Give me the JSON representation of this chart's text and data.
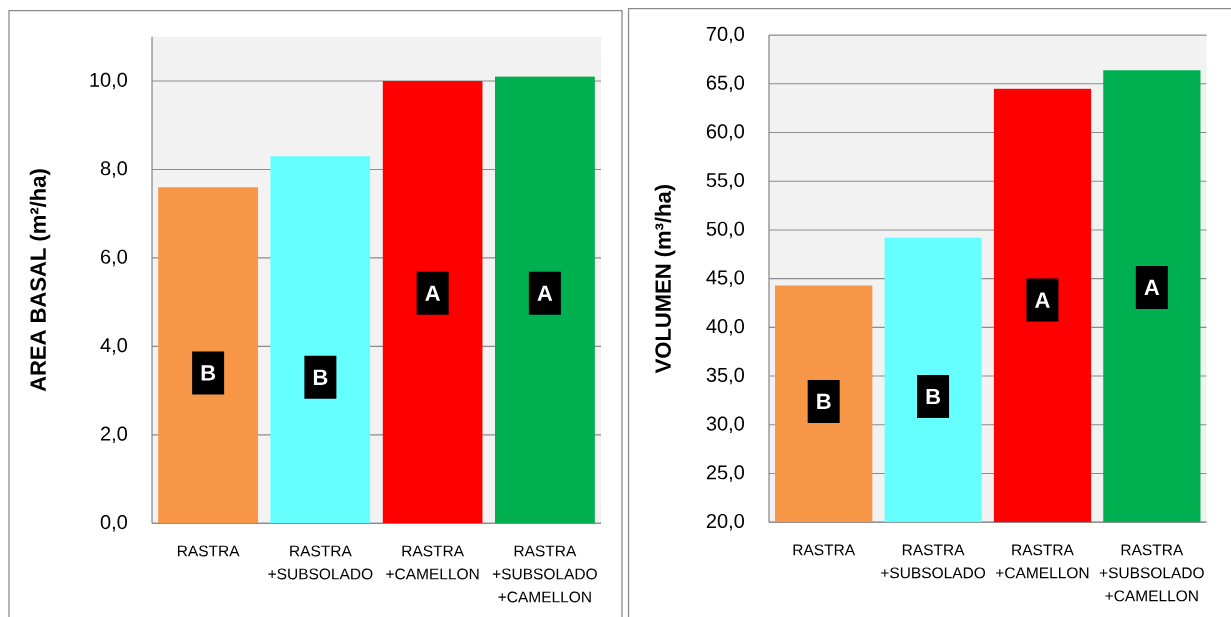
{
  "chart_data": [
    {
      "type": "bar",
      "categories": [
        "RASTRA",
        "RASTRA +SUBSOLADO",
        "RASTRA +CAMELLON",
        "RASTRA +SUBSOLADO +CAMELLON"
      ],
      "values": [
        7.6,
        8.3,
        10.0,
        10.1
      ],
      "colors": [
        "#f79646",
        "#66ffff",
        "#ff0000",
        "#00b050"
      ],
      "ylabel": "AREA BASAL (m²/ha)",
      "ylim": [
        0,
        11
      ],
      "yticks": [
        {
          "value": 0,
          "label": "0,0"
        },
        {
          "value": 2,
          "label": "2,0"
        },
        {
          "value": 4,
          "label": "4,0"
        },
        {
          "value": 6,
          "label": "6,0"
        },
        {
          "value": 8,
          "label": "8,0"
        },
        {
          "value": 10,
          "label": "10,0"
        }
      ],
      "grid": "y",
      "annotations": [
        {
          "text": "B",
          "x": "RASTRA",
          "y": 3.4
        },
        {
          "text": "B",
          "x": "RASTRA +SUBSOLADO",
          "y": 3.3
        },
        {
          "text": "A",
          "x": "RASTRA +CAMELLON",
          "y": 5.2
        },
        {
          "text": "A",
          "x": "RASTRA +SUBSOLADO +CAMELLON",
          "y": 5.2
        }
      ]
    },
    {
      "type": "bar",
      "categories": [
        "RASTRA",
        "RASTRA +SUBSOLADO",
        "RASTRA +CAMELLON",
        "RASTRA +SUBSOLADO +CAMELLON"
      ],
      "values": [
        44.3,
        49.2,
        64.5,
        66.4
      ],
      "colors": [
        "#f79646",
        "#66ffff",
        "#ff0000",
        "#00b050"
      ],
      "ylabel": "VOLUMEN (m³/ha)",
      "ylim": [
        20,
        70
      ],
      "yticks": [
        {
          "value": 20,
          "label": "20,0"
        },
        {
          "value": 25,
          "label": "25,0"
        },
        {
          "value": 30,
          "label": "30,0"
        },
        {
          "value": 35,
          "label": "35,0"
        },
        {
          "value": 40,
          "label": "40,0"
        },
        {
          "value": 45,
          "label": "45,0"
        },
        {
          "value": 50,
          "label": "50,0"
        },
        {
          "value": 55,
          "label": "55,0"
        },
        {
          "value": 60,
          "label": "60,0"
        },
        {
          "value": 65,
          "label": "65,0"
        },
        {
          "value": 70,
          "label": "70,0"
        }
      ],
      "grid": "y",
      "annotations": [
        {
          "text": "B",
          "x": "RASTRA",
          "y": 32.4
        },
        {
          "text": "B",
          "x": "RASTRA +SUBSOLADO",
          "y": 32.9
        },
        {
          "text": "A",
          "x": "RASTRA +CAMELLON",
          "y": 42.8
        },
        {
          "text": "A",
          "x": "RASTRA +SUBSOLADO +CAMELLON",
          "y": 44.1
        }
      ]
    }
  ]
}
